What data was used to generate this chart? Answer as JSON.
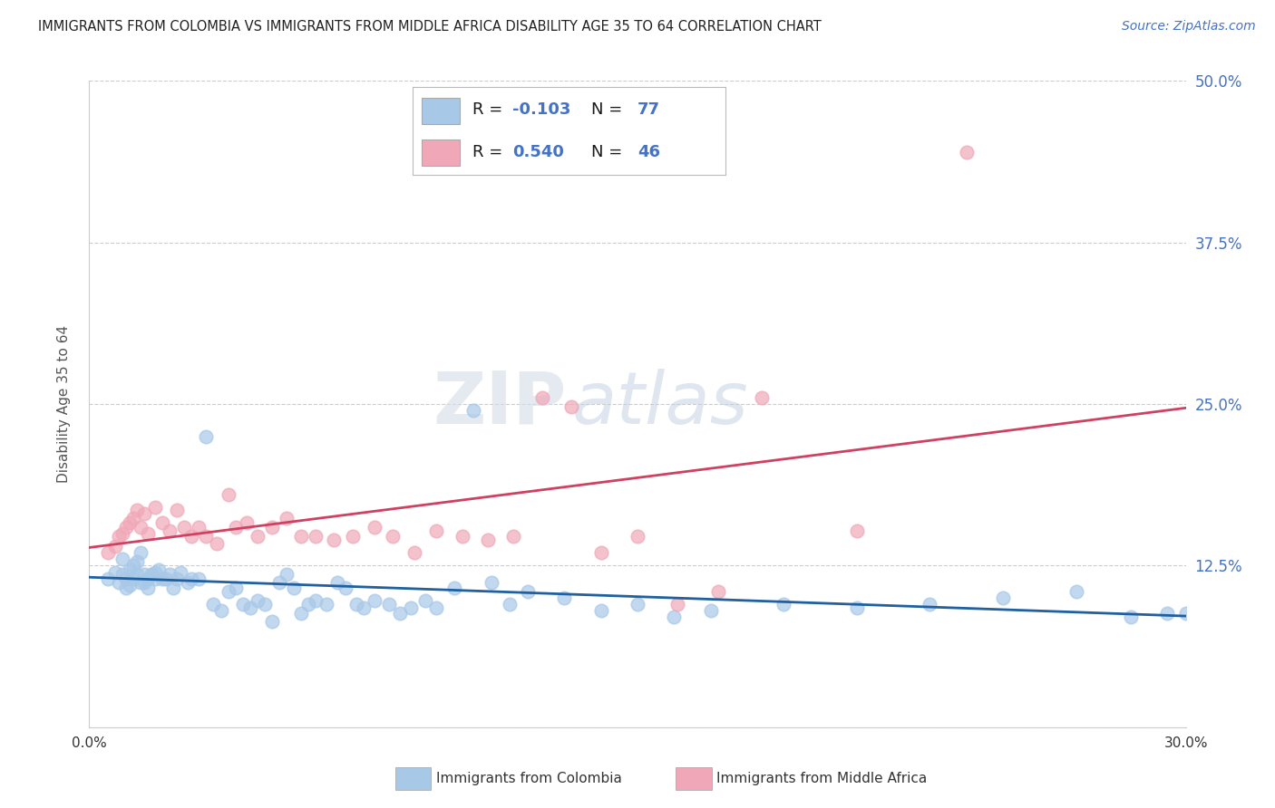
{
  "title": "IMMIGRANTS FROM COLOMBIA VS IMMIGRANTS FROM MIDDLE AFRICA DISABILITY AGE 35 TO 64 CORRELATION CHART",
  "source": "Source: ZipAtlas.com",
  "ylabel": "Disability Age 35 to 64",
  "xlabel_colombia": "Immigrants from Colombia",
  "xlabel_middle_africa": "Immigrants from Middle Africa",
  "xlim": [
    0.0,
    0.3
  ],
  "ylim": [
    0.0,
    0.5
  ],
  "xticks": [
    0.0,
    0.05,
    0.1,
    0.15,
    0.2,
    0.25,
    0.3
  ],
  "xtick_labels": [
    "0.0%",
    "",
    "",
    "",
    "",
    "",
    "30.0%"
  ],
  "ytick_labels": [
    "12.5%",
    "25.0%",
    "37.5%",
    "50.0%"
  ],
  "yticks": [
    0.125,
    0.25,
    0.375,
    0.5
  ],
  "colombia_color": "#A8C8E8",
  "middle_africa_color": "#F0A8B8",
  "colombia_line_color": "#2060A0",
  "middle_africa_line_color": "#D04060",
  "colombia_R": -0.103,
  "colombia_N": 77,
  "middle_africa_R": 0.54,
  "middle_africa_N": 46,
  "colombia_scatter_x": [
    0.005,
    0.007,
    0.008,
    0.009,
    0.009,
    0.01,
    0.01,
    0.011,
    0.011,
    0.012,
    0.012,
    0.013,
    0.013,
    0.014,
    0.014,
    0.015,
    0.015,
    0.016,
    0.016,
    0.017,
    0.018,
    0.018,
    0.019,
    0.02,
    0.021,
    0.022,
    0.023,
    0.024,
    0.025,
    0.027,
    0.028,
    0.03,
    0.032,
    0.034,
    0.036,
    0.038,
    0.04,
    0.042,
    0.044,
    0.046,
    0.048,
    0.05,
    0.052,
    0.054,
    0.056,
    0.058,
    0.06,
    0.062,
    0.065,
    0.068,
    0.07,
    0.073,
    0.075,
    0.078,
    0.082,
    0.085,
    0.088,
    0.092,
    0.095,
    0.1,
    0.105,
    0.11,
    0.115,
    0.12,
    0.13,
    0.14,
    0.15,
    0.16,
    0.17,
    0.19,
    0.21,
    0.23,
    0.25,
    0.27,
    0.285,
    0.295,
    0.3
  ],
  "colombia_scatter_y": [
    0.115,
    0.12,
    0.112,
    0.118,
    0.13,
    0.108,
    0.115,
    0.11,
    0.122,
    0.125,
    0.115,
    0.118,
    0.128,
    0.112,
    0.135,
    0.118,
    0.112,
    0.108,
    0.115,
    0.118,
    0.12,
    0.115,
    0.122,
    0.115,
    0.115,
    0.118,
    0.108,
    0.115,
    0.12,
    0.112,
    0.115,
    0.115,
    0.225,
    0.095,
    0.09,
    0.105,
    0.108,
    0.095,
    0.092,
    0.098,
    0.095,
    0.082,
    0.112,
    0.118,
    0.108,
    0.088,
    0.095,
    0.098,
    0.095,
    0.112,
    0.108,
    0.095,
    0.092,
    0.098,
    0.095,
    0.088,
    0.092,
    0.098,
    0.092,
    0.108,
    0.245,
    0.112,
    0.095,
    0.105,
    0.1,
    0.09,
    0.095,
    0.085,
    0.09,
    0.095,
    0.092,
    0.095,
    0.1,
    0.105,
    0.085,
    0.088,
    0.088
  ],
  "middle_africa_scatter_x": [
    0.005,
    0.007,
    0.008,
    0.009,
    0.01,
    0.011,
    0.012,
    0.013,
    0.014,
    0.015,
    0.016,
    0.018,
    0.02,
    0.022,
    0.024,
    0.026,
    0.028,
    0.03,
    0.032,
    0.035,
    0.038,
    0.04,
    0.043,
    0.046,
    0.05,
    0.054,
    0.058,
    0.062,
    0.067,
    0.072,
    0.078,
    0.083,
    0.089,
    0.095,
    0.102,
    0.109,
    0.116,
    0.124,
    0.132,
    0.14,
    0.15,
    0.161,
    0.172,
    0.184,
    0.21,
    0.24
  ],
  "middle_africa_scatter_y": [
    0.135,
    0.14,
    0.148,
    0.15,
    0.155,
    0.158,
    0.162,
    0.168,
    0.155,
    0.165,
    0.15,
    0.17,
    0.158,
    0.152,
    0.168,
    0.155,
    0.148,
    0.155,
    0.148,
    0.142,
    0.18,
    0.155,
    0.158,
    0.148,
    0.155,
    0.162,
    0.148,
    0.148,
    0.145,
    0.148,
    0.155,
    0.148,
    0.135,
    0.152,
    0.148,
    0.145,
    0.148,
    0.255,
    0.248,
    0.135,
    0.148,
    0.095,
    0.105,
    0.255,
    0.152,
    0.445
  ],
  "watermark_zip": "ZIP",
  "watermark_atlas": "atlas",
  "background_color": "#ffffff",
  "grid_color": "#cccccc",
  "legend_text_color": "#1a1a2e",
  "r_n_color": "#4472C4",
  "ytick_right_color": "#4472C4",
  "xtick_color": "#333333"
}
